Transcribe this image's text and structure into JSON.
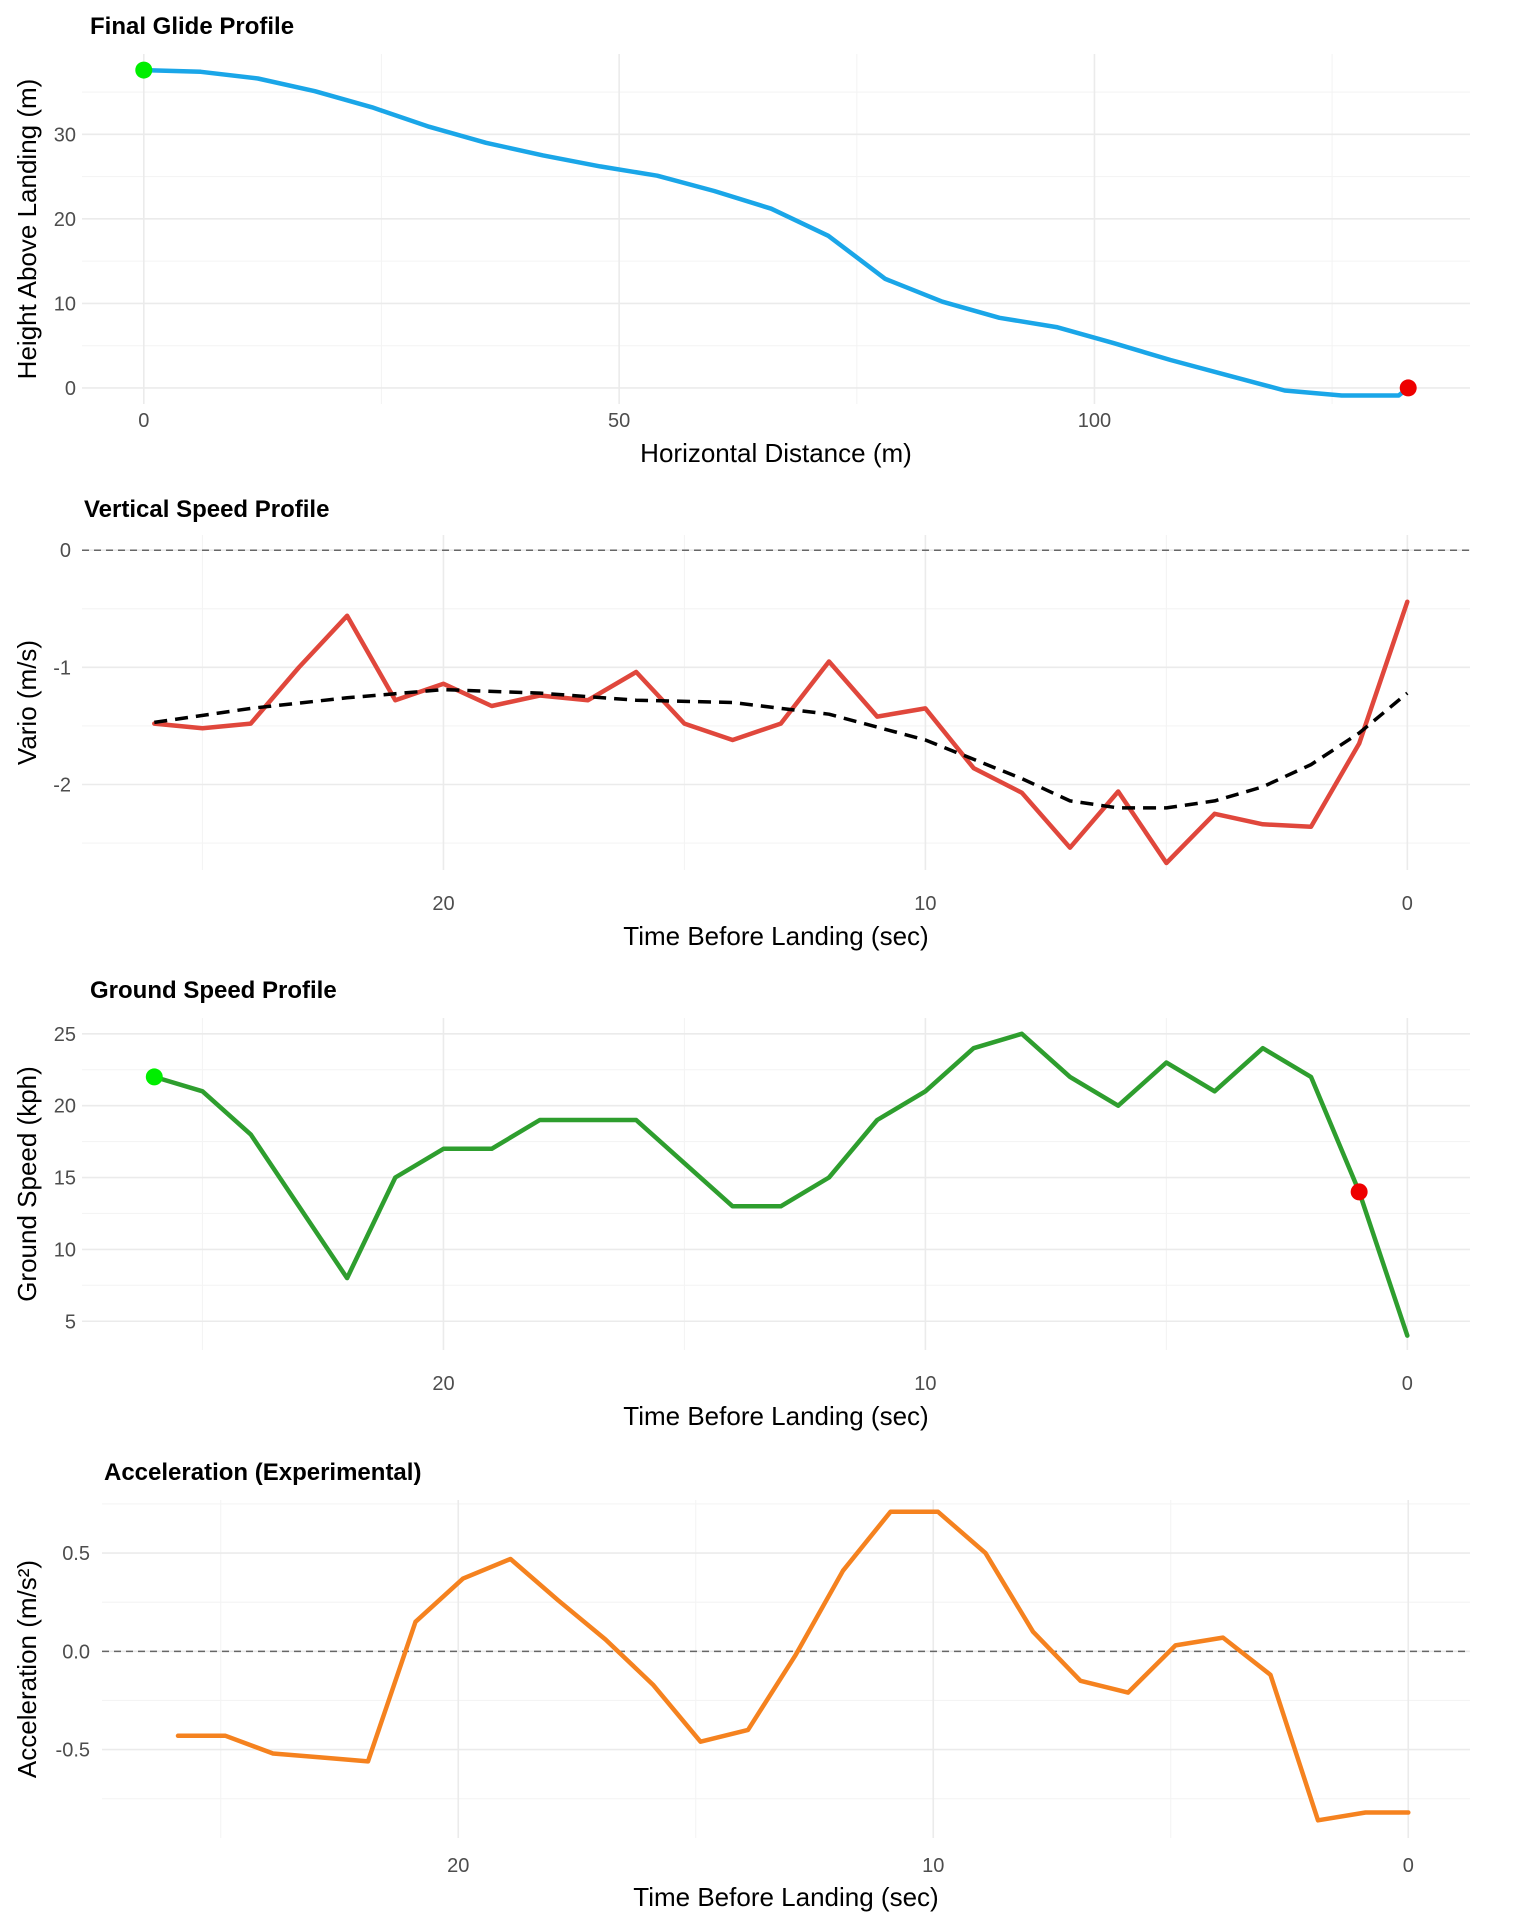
{
  "chart_data": [
    {
      "type": "line",
      "title": "Final Glide Profile",
      "xlabel": "Horizontal Distance (m)",
      "ylabel": "Height Above Landing (m)",
      "xlim": [
        -6.5,
        139.5
      ],
      "ylim": [
        -1.9,
        39.5
      ],
      "xticks": [
        0,
        50,
        100
      ],
      "yticks": [
        0,
        10,
        20,
        30
      ],
      "grid": true,
      "series": [
        {
          "color": "#1aa6e8",
          "style": "solid",
          "x": [
            0,
            6,
            12,
            18,
            24,
            30,
            36,
            42,
            48,
            54,
            60,
            66,
            72,
            78,
            84,
            90,
            96,
            102,
            108,
            114,
            120,
            126,
            132,
            133
          ],
          "y": [
            37.6,
            37.4,
            36.6,
            35.1,
            33.2,
            30.9,
            29.0,
            27.5,
            26.2,
            25.1,
            23.3,
            21.2,
            18.0,
            12.9,
            10.2,
            8.3,
            7.2,
            5.3,
            3.3,
            1.5,
            -0.3,
            -0.9,
            -0.9,
            0.0
          ]
        }
      ],
      "markers": [
        {
          "x": 0,
          "y": 37.6,
          "color": "#00ee00"
        },
        {
          "x": 133,
          "y": 0.0,
          "color": "#ee0000"
        }
      ]
    },
    {
      "type": "line",
      "title": "Vertical Speed Profile",
      "xlabel": "Time Before Landing (sec)",
      "ylabel": "Vario (m/s)",
      "xlim": [
        27.5,
        -1.3
      ],
      "ylim": [
        -2.73,
        0.13
      ],
      "xticks": [
        20,
        10,
        0
      ],
      "yticks": [
        0,
        -1,
        -2
      ],
      "grid": true,
      "reference_line": {
        "y": 0,
        "color": "#666666",
        "style": "dashed"
      },
      "series": [
        {
          "color": "#e0473c",
          "style": "solid",
          "x": [
            26,
            25,
            24,
            23,
            22,
            21,
            20,
            19,
            18,
            17,
            16,
            15,
            14,
            13,
            12,
            11,
            10,
            9,
            8,
            7,
            6,
            5,
            4,
            3,
            2,
            1,
            0
          ],
          "y": [
            -1.48,
            -1.52,
            -1.48,
            -1.0,
            -0.56,
            -1.28,
            -1.14,
            -1.33,
            -1.24,
            -1.28,
            -1.04,
            -1.48,
            -1.62,
            -1.48,
            -0.95,
            -1.42,
            -1.35,
            -1.86,
            -2.07,
            -2.54,
            -2.06,
            -2.67,
            -2.25,
            -2.34,
            -2.36,
            -1.65,
            -0.44
          ]
        },
        {
          "color": "#000000",
          "style": "dashed",
          "x": [
            26,
            24,
            22,
            20,
            18,
            16,
            14,
            12,
            10,
            8,
            7,
            6,
            5,
            4,
            3,
            2,
            1,
            0
          ],
          "y": [
            -1.47,
            -1.35,
            -1.26,
            -1.19,
            -1.22,
            -1.28,
            -1.3,
            -1.4,
            -1.62,
            -1.95,
            -2.14,
            -2.2,
            -2.2,
            -2.14,
            -2.02,
            -1.83,
            -1.56,
            -1.22
          ]
        }
      ]
    },
    {
      "type": "line",
      "title": "Ground Speed Profile",
      "xlabel": "Time Before Landing (sec)",
      "ylabel": "Ground Speed (kph)",
      "xlim": [
        27.5,
        -1.3
      ],
      "ylim": [
        3.0,
        26.1
      ],
      "xticks": [
        20,
        10,
        0
      ],
      "yticks": [
        5,
        10,
        15,
        20,
        25
      ],
      "grid": true,
      "series": [
        {
          "color": "#2e9e2e",
          "style": "solid",
          "x": [
            26,
            25,
            24,
            23,
            22,
            21,
            20,
            19,
            18,
            17,
            16,
            15,
            14,
            13,
            12,
            11,
            10,
            9,
            8,
            7,
            6,
            5,
            4,
            3,
            2,
            1,
            0
          ],
          "y": [
            22,
            21,
            18,
            13,
            8,
            15,
            17,
            17,
            19,
            19,
            19,
            16,
            13,
            13,
            15,
            19,
            21,
            24,
            25,
            22,
            20,
            23,
            21,
            24,
            22,
            14,
            4
          ]
        }
      ],
      "markers": [
        {
          "x": 26,
          "y": 22,
          "color": "#00ee00"
        },
        {
          "x": 1,
          "y": 14,
          "color": "#ee0000"
        }
      ]
    },
    {
      "type": "line",
      "title": "Acceleration (Experimental)",
      "xlabel": "Time Before Landing (sec)",
      "ylabel": "Acceleration (m/s²)",
      "xlim": [
        27.5,
        -1.3
      ],
      "ylim": [
        -0.95,
        0.77
      ],
      "xticks": [
        20,
        10,
        0
      ],
      "yticks": [
        0.5,
        0.0,
        -0.5
      ],
      "ytick_labels": [
        "0.5",
        "0.0",
        "-0.5"
      ],
      "grid": true,
      "reference_line": {
        "y": 0,
        "color": "#666666",
        "style": "dashed"
      },
      "series": [
        {
          "color": "#f5821f",
          "style": "solid",
          "x": [
            25.9,
            24.9,
            23.9,
            22.9,
            21.9,
            20.9,
            19.9,
            18.9,
            17.9,
            16.9,
            15.9,
            14.9,
            13.9,
            12.9,
            11.9,
            10.9,
            9.9,
            8.9,
            7.9,
            6.9,
            5.9,
            4.9,
            3.9,
            2.9,
            1.9,
            0.9,
            0
          ],
          "y": [
            -0.43,
            -0.43,
            -0.52,
            -0.54,
            -0.56,
            0.15,
            0.37,
            0.47,
            0.26,
            0.06,
            -0.17,
            -0.46,
            -0.4,
            -0.02,
            0.41,
            0.71,
            0.71,
            0.5,
            0.1,
            -0.15,
            -0.21,
            0.03,
            0.07,
            -0.12,
            -0.86,
            -0.82,
            -0.82
          ]
        }
      ]
    }
  ]
}
